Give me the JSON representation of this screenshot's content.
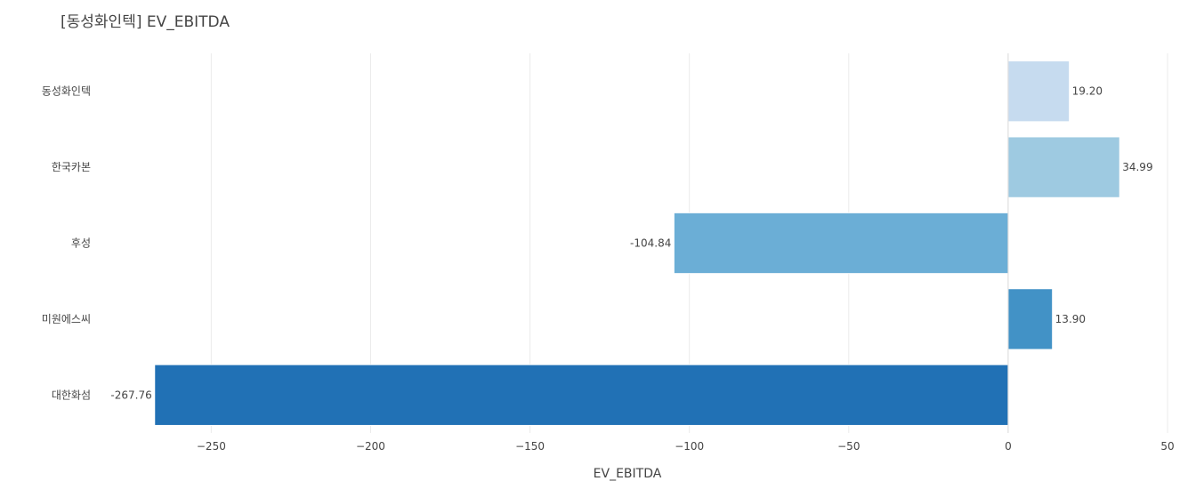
{
  "chart_data": {
    "type": "bar",
    "orientation": "horizontal",
    "title": "[동성화인텍] EV_EBITDA",
    "xlabel": "EV_EBITDA",
    "ylabel": "",
    "categories": [
      "동성화인텍",
      "한국카본",
      "후성",
      "미원에스씨",
      "대한화섬"
    ],
    "values": [
      19.2,
      34.99,
      -104.84,
      13.9,
      -267.76
    ],
    "value_labels": [
      "19.20",
      "34.99",
      "-104.84",
      "13.90",
      "-267.76"
    ],
    "colors": [
      "#c6dbef",
      "#9ecae1",
      "#6baed6",
      "#4292c6",
      "#2171b5"
    ],
    "xlim": [
      -285,
      50
    ],
    "xticks": [
      -250,
      -200,
      -150,
      -100,
      -50,
      0,
      50
    ],
    "xtick_labels": [
      "−250",
      "−200",
      "−150",
      "−100",
      "−50",
      "0",
      "50"
    ],
    "grid": true,
    "legend": false
  }
}
